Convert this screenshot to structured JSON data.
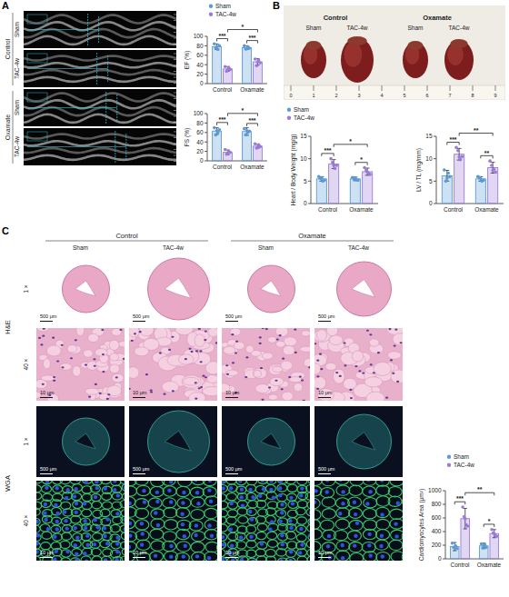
{
  "chart_data": [
    {
      "type": "bar",
      "y_label": "EF (%)",
      "categories": [
        "Control",
        "Oxamate"
      ],
      "series": [
        {
          "name": "Sham",
          "color": "#5b9bd5",
          "values": [
            78,
            76
          ],
          "errors": [
            6,
            4
          ],
          "points": [
            [
              84,
              80,
              76,
              72,
              78
            ],
            [
              80,
              75,
              73,
              78,
              74
            ]
          ]
        },
        {
          "name": "TAC-4w",
          "color": "#9a7bd6",
          "values": [
            31,
            46
          ],
          "errors": [
            5,
            7
          ],
          "points": [
            [
              36,
              30,
              26,
              34,
              29
            ],
            [
              52,
              44,
              38,
              50,
              46
            ]
          ]
        }
      ],
      "ylim": [
        0,
        100
      ],
      "yticks": [
        0,
        20,
        40,
        60,
        80,
        100
      ],
      "legend": "top",
      "comparisons": [
        {
          "category": "Control",
          "between": [
            "Sham",
            "TAC-4w"
          ],
          "label": "***"
        },
        {
          "category": "Oxamate",
          "between": [
            "Sham",
            "TAC-4w"
          ],
          "label": "***"
        },
        {
          "series": "TAC-4w",
          "between": [
            "Control",
            "Oxamate"
          ],
          "label": "*"
        }
      ]
    },
    {
      "type": "bar",
      "y_label": "FS (%)",
      "categories": [
        "Control",
        "Oxamate"
      ],
      "series": [
        {
          "name": "Sham",
          "color": "#5b9bd5",
          "values": [
            63,
            62
          ],
          "errors": [
            7,
            8
          ],
          "points": [
            [
              70,
              66,
              55,
              60,
              64
            ],
            [
              68,
              63,
              55,
              60,
              64
            ]
          ]
        },
        {
          "name": "TAC-4w",
          "color": "#9a7bd6",
          "values": [
            18,
            31
          ],
          "errors": [
            5,
            4
          ],
          "points": [
            [
              24,
              18,
              14,
              20,
              16
            ],
            [
              36,
              30,
              27,
              34,
              28
            ]
          ]
        }
      ],
      "ylim": [
        0,
        100
      ],
      "yticks": [
        0,
        20,
        40,
        60,
        80,
        100
      ],
      "comparisons": [
        {
          "category": "Control",
          "between": [
            "Sham",
            "TAC-4w"
          ],
          "label": "***"
        },
        {
          "category": "Oxamate",
          "between": [
            "Sham",
            "TAC-4w"
          ],
          "label": "***"
        },
        {
          "series": "TAC-4w",
          "between": [
            "Control",
            "Oxamate"
          ],
          "label": "*"
        }
      ]
    },
    {
      "type": "bar",
      "y_label": "Heart / Body Weight (mg/g)",
      "categories": [
        "Control",
        "Oxamate"
      ],
      "series": [
        {
          "name": "Sham",
          "color": "#5b9bd5",
          "values": [
            5.5,
            5.5
          ],
          "errors": [
            0.5,
            0.4
          ],
          "points": [
            [
              6.0,
              5.2,
              5.6,
              5.0,
              5.7
            ],
            [
              5.8,
              5.2,
              5.5,
              5.3,
              5.7
            ]
          ]
        },
        {
          "name": "TAC-4w",
          "color": "#9a7bd6",
          "values": [
            8.8,
            7.1
          ],
          "errors": [
            1.0,
            0.8
          ],
          "points": [
            [
              10.0,
              8.5,
              9.2,
              7.8,
              8.5
            ],
            [
              8.0,
              6.5,
              7.4,
              6.8,
              7.0
            ]
          ]
        }
      ],
      "ylim": [
        0,
        15
      ],
      "yticks": [
        0,
        5,
        10,
        15
      ],
      "legend": "top",
      "comparisons": [
        {
          "category": "Control",
          "between": [
            "Sham",
            "TAC-4w"
          ],
          "label": "***"
        },
        {
          "category": "Oxamate",
          "between": [
            "Sham",
            "TAC-4w"
          ],
          "label": "*"
        },
        {
          "series": "TAC-4w",
          "between": [
            "Control",
            "Oxamate"
          ],
          "label": "*"
        }
      ]
    },
    {
      "type": "bar",
      "y_label": "LV / TL (mg/mm)",
      "categories": [
        "Control",
        "Oxamate"
      ],
      "series": [
        {
          "name": "Sham",
          "color": "#5b9bd5",
          "values": [
            6.2,
            5.5
          ],
          "errors": [
            1.2,
            0.5
          ],
          "points": [
            [
              7.5,
              6.0,
              5.0,
              6.8,
              5.7
            ],
            [
              6.0,
              5.2,
              5.8,
              5.0,
              5.5
            ]
          ]
        },
        {
          "name": "TAC-4w",
          "color": "#9a7bd6",
          "values": [
            11,
            8
          ],
          "errors": [
            1.3,
            1.2
          ],
          "points": [
            [
              12.5,
              10.5,
              11.8,
              9.8,
              10.4
            ],
            [
              9.5,
              7.0,
              8.5,
              7.6,
              7.4
            ]
          ]
        }
      ],
      "ylim": [
        0,
        15
      ],
      "yticks": [
        0,
        5,
        10,
        15
      ],
      "comparisons": [
        {
          "category": "Control",
          "between": [
            "Sham",
            "TAC-4w"
          ],
          "label": "***"
        },
        {
          "category": "Oxamate",
          "between": [
            "Sham",
            "TAC-4w"
          ],
          "label": "**"
        },
        {
          "series": "TAC-4w",
          "between": [
            "Control",
            "Oxamate"
          ],
          "label": "**"
        }
      ]
    },
    {
      "type": "bar",
      "y_label": "Cardiomyocytes Area (μm²)",
      "categories": [
        "Control",
        "Oxamate"
      ],
      "series": [
        {
          "name": "Sham",
          "color": "#5b9bd5",
          "values": [
            180,
            190
          ],
          "errors": [
            60,
            40
          ],
          "points": [
            [
              230,
              150,
              170,
              190,
              160
            ],
            [
              220,
              170,
              160,
              210,
              190
            ]
          ]
        },
        {
          "name": "TAC-4w",
          "color": "#9a7bd6",
          "values": [
            590,
            370
          ],
          "errors": [
            150,
            60
          ],
          "points": [
            [
              760,
              480,
              620,
              500,
              590
            ],
            [
              430,
              330,
              380,
              340,
              370
            ]
          ]
        }
      ],
      "ylim": [
        0,
        1000
      ],
      "yticks": [
        0,
        200,
        400,
        600,
        800,
        1000
      ],
      "legend": "top",
      "comparisons": [
        {
          "category": "Control",
          "between": [
            "Sham",
            "TAC-4w"
          ],
          "label": "***"
        },
        {
          "category": "Oxamate",
          "between": [
            "Sham",
            "TAC-4w"
          ],
          "label": "*"
        },
        {
          "series": "TAC-4w",
          "between": [
            "Control",
            "Oxamate"
          ],
          "label": "**"
        }
      ]
    }
  ],
  "figure": {
    "panels": [
      "A",
      "B",
      "C"
    ],
    "A": {
      "groups": [
        "Control",
        "Oxamate"
      ],
      "conditions": [
        "Sham",
        "TAC-4w"
      ]
    },
    "B": {
      "groups": [
        "Control",
        "Oxamate"
      ],
      "conditions": [
        "Sham",
        "TAC-4w"
      ],
      "ruler": [
        0,
        1,
        2,
        3,
        4,
        5,
        6,
        7,
        8,
        9
      ]
    },
    "C": {
      "groups": [
        "Control",
        "Oxamate"
      ],
      "conditions": [
        "Sham",
        "TAC-4w"
      ],
      "stains": [
        "H&E",
        "WGA"
      ],
      "magnifications": [
        "1 ×",
        "40 ×"
      ],
      "scale_bars": [
        "500 μm",
        "10 μm"
      ]
    }
  }
}
